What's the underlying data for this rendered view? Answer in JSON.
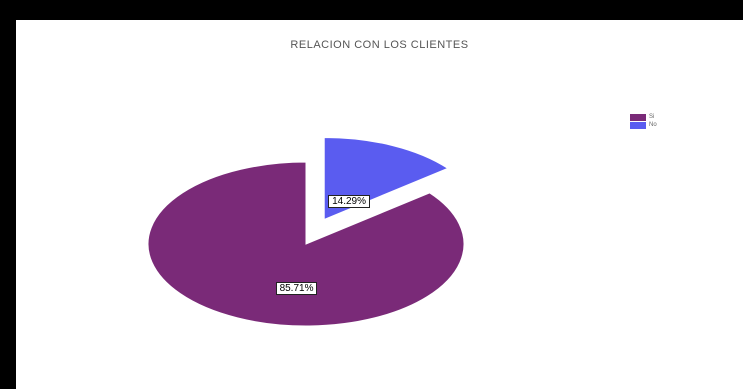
{
  "chart_data": {
    "type": "pie",
    "title": "RELACION CON LOS CLIENTES",
    "slices": [
      {
        "name": "Si",
        "value": 85.71,
        "label": "85.71%",
        "color": "#7a2a78"
      },
      {
        "name": "No",
        "value": 14.29,
        "label": "14.29%",
        "color": "#5a5cf0"
      }
    ],
    "exploded": "No",
    "start_angle_deg": 0,
    "direction": "counterclockwise",
    "legend_position": "right"
  }
}
